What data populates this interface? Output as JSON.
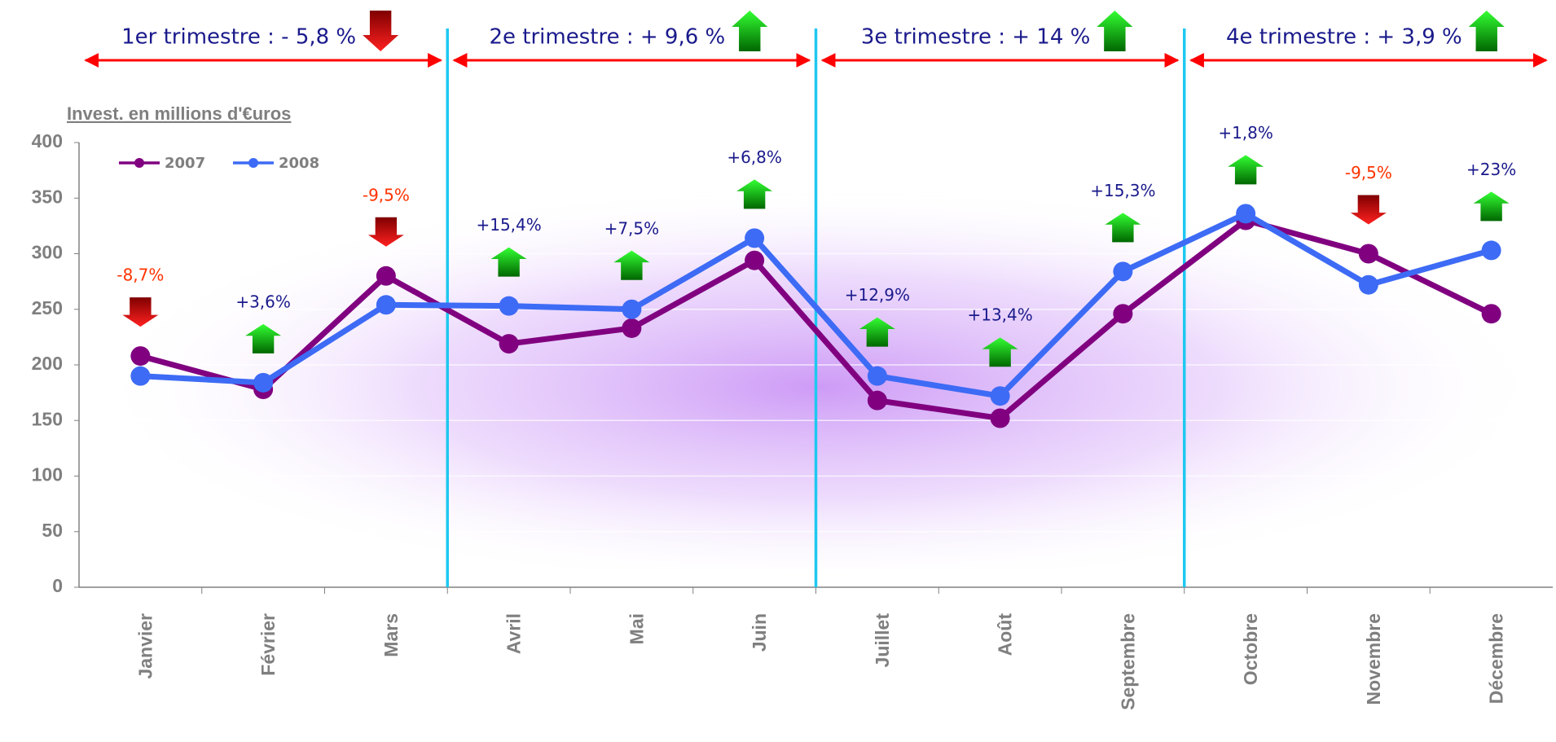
{
  "chart_data": {
    "type": "line",
    "y_axis_label": "Invest. en millions d'€uros",
    "categories": [
      "Janvier",
      "Février",
      "Mars",
      "Avril",
      "Mai",
      "Juin",
      "Juillet",
      "Août",
      "Septembre",
      "Octobre",
      "Novembre",
      "Décembre"
    ],
    "series": [
      {
        "name": "2007",
        "color": "#800080",
        "values": [
          208,
          178,
          280,
          219,
          233,
          294,
          168,
          152,
          246,
          330,
          300,
          246
        ]
      },
      {
        "name": "2008",
        "color": "#3d6bf5",
        "values": [
          190,
          184,
          254,
          253,
          250,
          314,
          190,
          172,
          284,
          336,
          272,
          303
        ]
      }
    ],
    "month_changes": [
      {
        "label": "-8,7%",
        "trend": "down"
      },
      {
        "label": "+3,6%",
        "trend": "up"
      },
      {
        "label": "-9,5%",
        "trend": "down"
      },
      {
        "label": "+15,4%",
        "trend": "up"
      },
      {
        "label": "+7,5%",
        "trend": "up"
      },
      {
        "label": "+6,8%",
        "trend": "up"
      },
      {
        "label": "+12,9%",
        "trend": "up"
      },
      {
        "label": "+13,4%",
        "trend": "up"
      },
      {
        "label": "+15,3%",
        "trend": "up"
      },
      {
        "label": "+1,8%",
        "trend": "up"
      },
      {
        "label": "-9,5%",
        "trend": "down"
      },
      {
        "label": "+23%",
        "trend": "up"
      }
    ],
    "quarters": [
      {
        "label": "1er trimestre : - 5,8 %",
        "trend": "down"
      },
      {
        "label": "2e trimestre : + 9,6 %",
        "trend": "up"
      },
      {
        "label": "3e trimestre : + 14 %",
        "trend": "up"
      },
      {
        "label": "4e trimestre : + 3,9 %",
        "trend": "up"
      }
    ],
    "ylim": [
      0,
      400
    ],
    "yticks": [
      0,
      50,
      100,
      150,
      200,
      250,
      300,
      350,
      400
    ],
    "grid": true,
    "legend": "top-left"
  }
}
